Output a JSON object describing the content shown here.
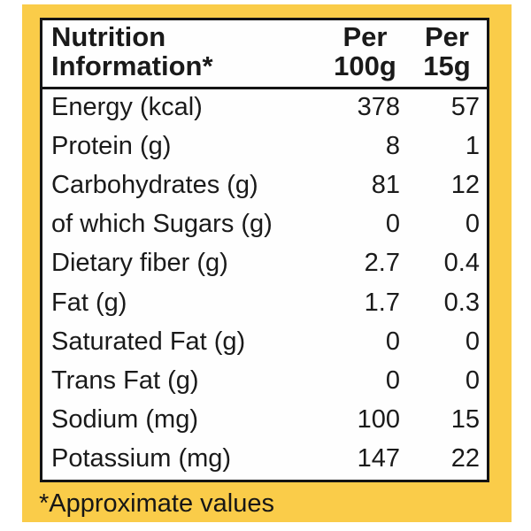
{
  "label": {
    "accent_color": "#facc49",
    "panel_background": "#fefefe",
    "border_color": "#141414",
    "header": {
      "title": "Nutrition Information*",
      "title_lines": [
        "Nutrition",
        "Information*"
      ],
      "columns": [
        {
          "label": "Per 100g",
          "lines": [
            "Per",
            "100g"
          ]
        },
        {
          "label": "Per 15g",
          "lines": [
            "Per",
            "15g"
          ]
        }
      ]
    },
    "table": {
      "rows": [
        {
          "label": "Energy (kcal)",
          "per_100g": "378",
          "per_15g": "57"
        },
        {
          "label": "Protein (g)",
          "per_100g": "8",
          "per_15g": "1"
        },
        {
          "label": "Carbohydrates (g)",
          "per_100g": "81",
          "per_15g": "12"
        },
        {
          "label": "of which Sugars (g)",
          "per_100g": "0",
          "per_15g": "0"
        },
        {
          "label": "Dietary fiber (g)",
          "per_100g": "2.7",
          "per_15g": "0.4"
        },
        {
          "label": "Fat (g)",
          "per_100g": "1.7",
          "per_15g": "0.3"
        },
        {
          "label": "Saturated Fat (g)",
          "per_100g": "0",
          "per_15g": "0"
        },
        {
          "label": "Trans Fat (g)",
          "per_100g": "0",
          "per_15g": "0"
        },
        {
          "label": "Sodium (mg)",
          "per_100g": "100",
          "per_15g": "15"
        },
        {
          "label": "Potassium (mg)",
          "per_100g": "147",
          "per_15g": "22"
        }
      ]
    },
    "footnote": "*Approximate values"
  }
}
